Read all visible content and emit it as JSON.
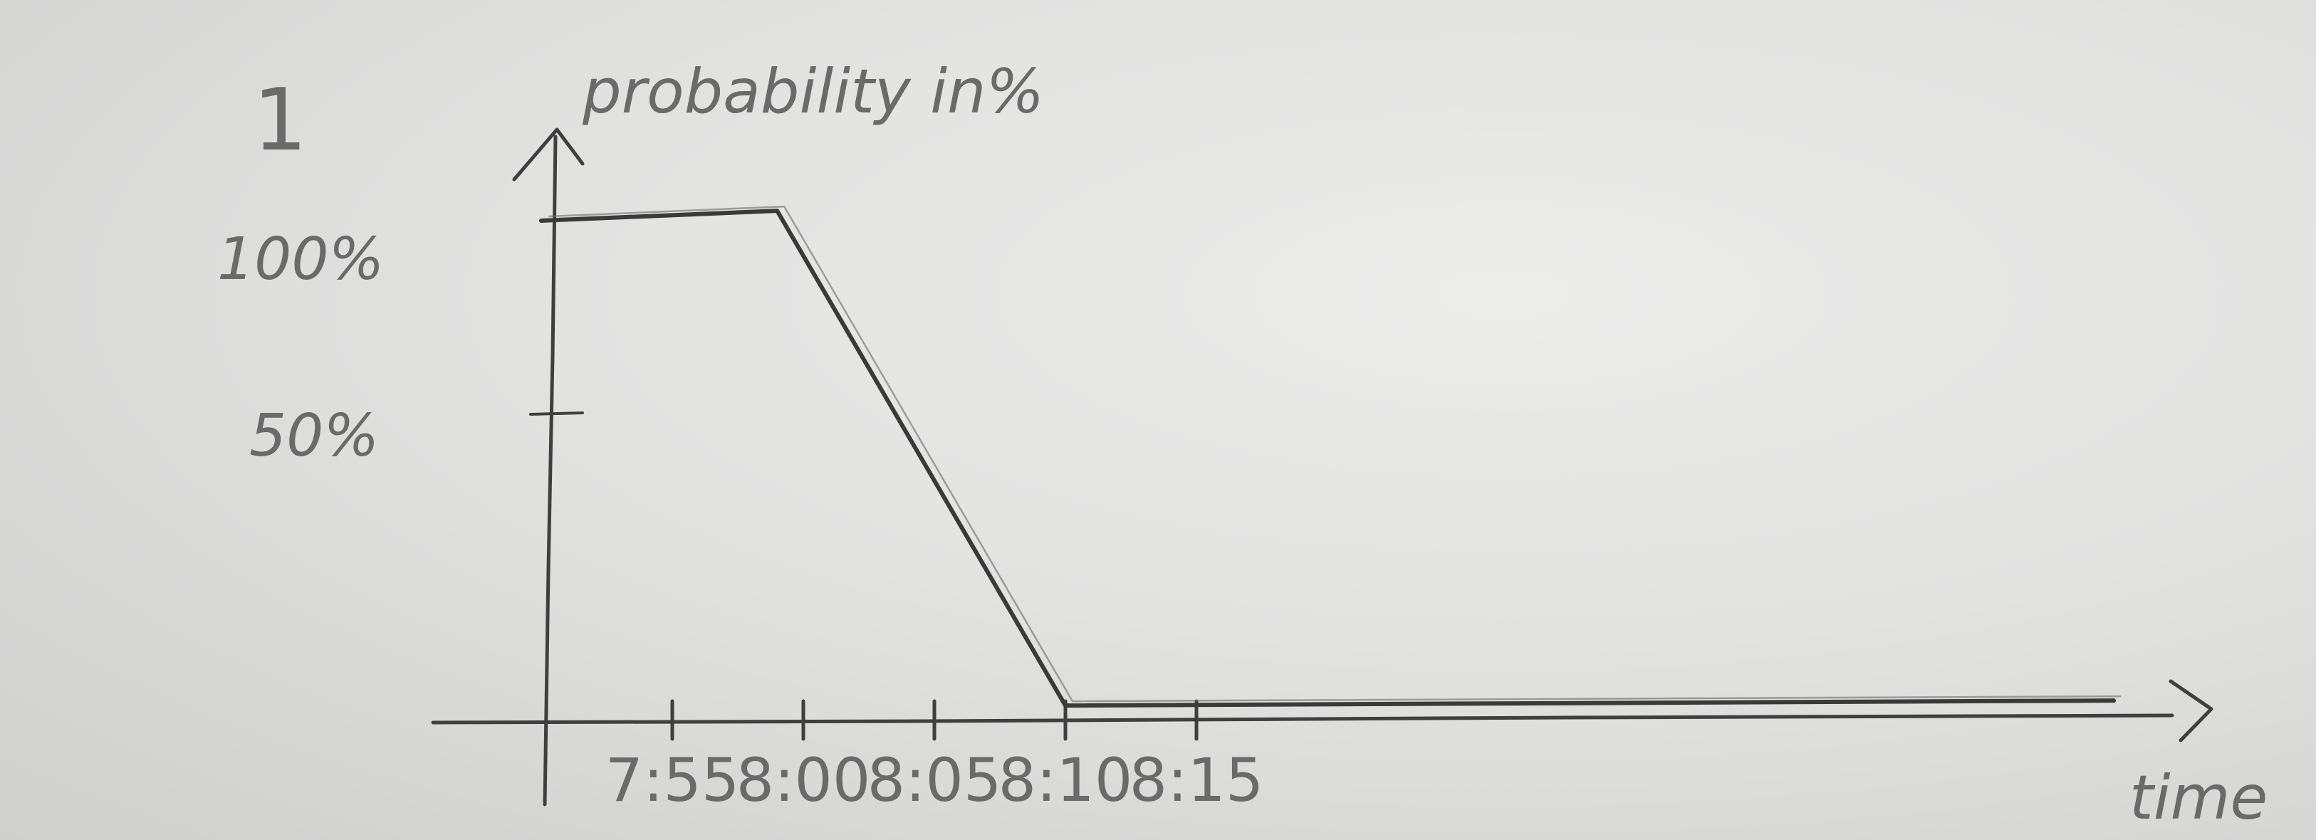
{
  "chart_data": {
    "type": "line",
    "sketch_number": "1",
    "ylabel": "probability in%",
    "xlabel": "time",
    "y_ticks": [
      {
        "value": 100,
        "label": "100%"
      },
      {
        "value": 50,
        "label": "50%"
      }
    ],
    "x_ticks": [
      "7:55",
      "8:00",
      "8:05",
      "8:10",
      "8:15"
    ],
    "series": [
      {
        "points": [
          {
            "x": "7:50",
            "y": 100
          },
          {
            "x": "7:59",
            "y": 102
          },
          {
            "x": "8:10",
            "y": 2
          },
          {
            "x": "8:50",
            "y": 3
          }
        ]
      }
    ],
    "grid": false,
    "legend": "none"
  },
  "colors": {
    "paper": "#e4e4e3",
    "pencil": "#3a3a3a",
    "pencil_light": "#6a6a6a"
  }
}
